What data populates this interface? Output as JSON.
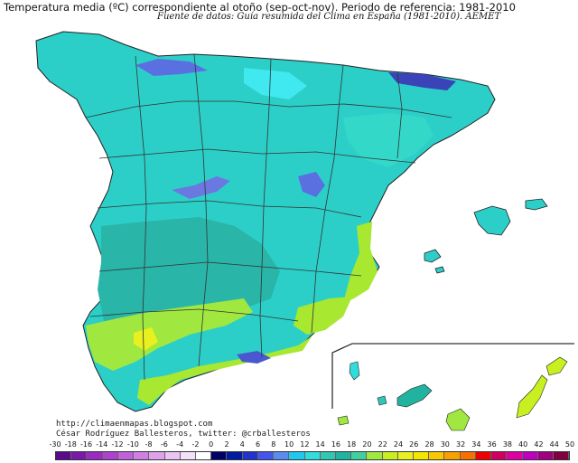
{
  "title": "Temperatura media (ºC) correspondiente al otoño (sep-oct-nov). Periodo de referencia: 1981-2010",
  "subtitle": "Fuente de datos: Guía resumida del Clima en España (1981-2010). AEMET",
  "credits": {
    "url": "http://climaenmapas.blogspot.com",
    "author": "César Rodríguez Ballesteros, twitter: @crballesteros"
  },
  "legend": {
    "labels": [
      "-30",
      "-18",
      "-16",
      "-14",
      "-12",
      "-10",
      "-8",
      "-6",
      "-4",
      "-2",
      "0",
      "2",
      "4",
      "6",
      "8",
      "10",
      "12",
      "14",
      "16",
      "18",
      "20",
      "22",
      "24",
      "26",
      "28",
      "30",
      "32",
      "34",
      "36",
      "38",
      "40",
      "42",
      "44",
      "50"
    ],
    "colors": [
      "#5a0a8c",
      "#7a1aa8",
      "#9a2ac0",
      "#b040d0",
      "#c060dc",
      "#d080e4",
      "#dfa0ec",
      "#ecc4f4",
      "#f4e0fa",
      "#ffffff",
      "#000066",
      "#001aa0",
      "#2233cc",
      "#4455ee",
      "#5a8cf0",
      "#20c8f0",
      "#30dcdc",
      "#30c8b4",
      "#20b4a0",
      "#40d0a0",
      "#a0e840",
      "#c8f020",
      "#e8f020",
      "#f4e600",
      "#f8c800",
      "#f8a000",
      "#f87000",
      "#f00000",
      "#d00060",
      "#e000a0",
      "#c000c0",
      "#a00080",
      "#800040"
    ]
  },
  "colors": {
    "sea": "#ffffff",
    "land_base": "#2ccfc8",
    "land_low": "#29b5a8",
    "mountains_cold": "#5a70e0",
    "coast_warm": "#a8e830",
    "south_warm": "#c8f020",
    "borders": "#333333"
  }
}
